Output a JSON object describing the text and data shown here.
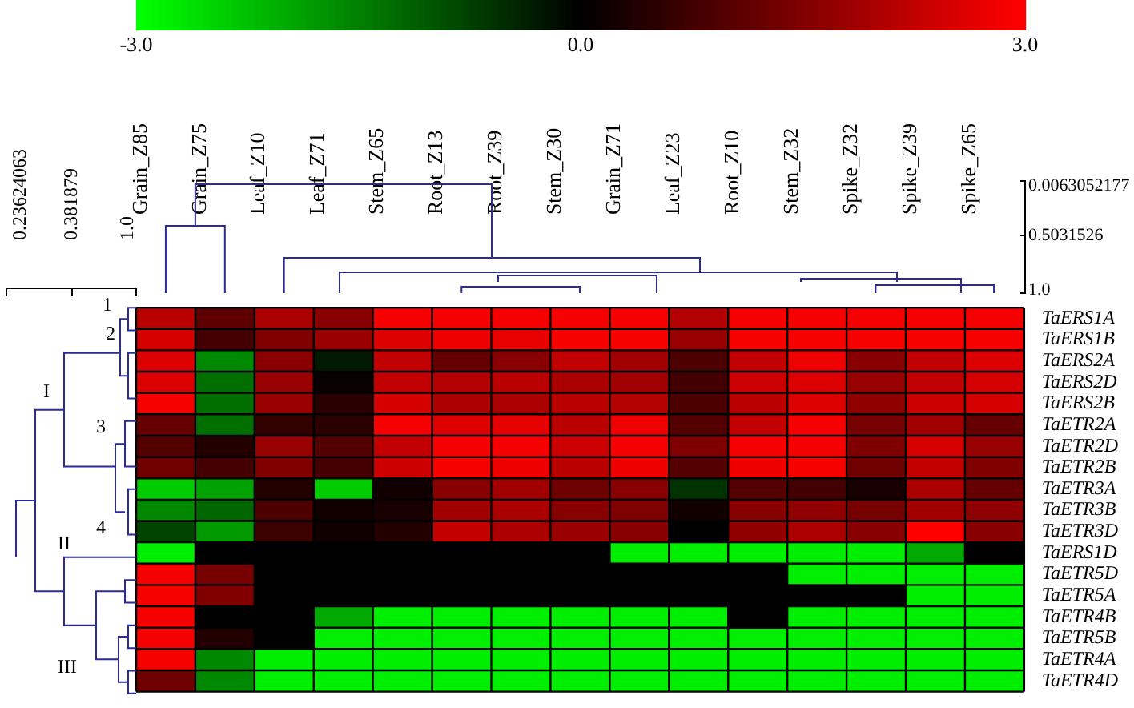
{
  "chart_data": {
    "type": "heatmap",
    "categories": [
      "Grain_Z85",
      "Grain_Z75",
      "Leaf_Z10",
      "Leaf_Z71",
      "Stem_Z65",
      "Root_Z13",
      "Root_Z39",
      "Stem_Z30",
      "Grain_Z71",
      "Leaf_Z23",
      "Root_Z10",
      "Stem_Z32",
      "Spike_Z32",
      "Spike_Z39",
      "Spike_Z65"
    ],
    "y_categories": [
      "TaERS1A",
      "TaERS1B",
      "TaERS2A",
      "TaERS2D",
      "TaERS2B",
      "TaETR2A",
      "TaETR2D",
      "TaETR2B",
      "TaETR3A",
      "TaETR3B",
      "TaETR3D",
      "TaERS1D",
      "TaETR5D",
      "TaETR5A",
      "TaETR4B",
      "TaETR5B",
      "TaETR4A",
      "TaETR4D"
    ],
    "cells": [
      [
        2.2,
        1.1,
        2.0,
        1.6,
        2.9,
        2.9,
        2.9,
        2.9,
        2.9,
        2.1,
        2.9,
        2.9,
        2.9,
        2.9,
        2.9
      ],
      [
        2.5,
        0.8,
        1.5,
        1.8,
        2.6,
        2.8,
        2.7,
        2.9,
        2.9,
        1.8,
        2.9,
        2.9,
        2.9,
        2.9,
        2.9
      ],
      [
        2.6,
        -1.6,
        1.6,
        -0.3,
        2.3,
        1.2,
        1.6,
        2.3,
        1.9,
        0.9,
        2.3,
        2.8,
        1.6,
        2.3,
        2.6
      ],
      [
        2.6,
        -1.3,
        1.8,
        0.1,
        2.3,
        2.1,
        2.2,
        2.0,
        1.9,
        0.8,
        2.4,
        2.6,
        1.8,
        2.3,
        2.5
      ],
      [
        2.9,
        -1.3,
        1.8,
        0.5,
        2.5,
        2.0,
        2.0,
        2.2,
        2.1,
        0.9,
        2.2,
        2.6,
        1.7,
        2.4,
        2.5
      ],
      [
        1.2,
        -1.3,
        0.6,
        0.5,
        2.9,
        2.6,
        2.7,
        2.2,
        2.8,
        1.0,
        2.3,
        2.9,
        1.4,
        1.9,
        1.2
      ],
      [
        1.0,
        0.4,
        1.8,
        1.0,
        2.3,
        2.9,
        2.9,
        2.4,
        2.9,
        1.5,
        2.9,
        2.9,
        1.5,
        2.5,
        1.8
      ],
      [
        1.3,
        0.8,
        1.5,
        0.8,
        2.4,
        2.9,
        2.8,
        2.2,
        2.8,
        1.0,
        2.8,
        2.9,
        1.3,
        2.3,
        1.5
      ],
      [
        -2.4,
        -1.9,
        0.4,
        -2.4,
        0.2,
        1.6,
        1.9,
        1.3,
        1.6,
        -0.6,
        1.0,
        0.8,
        0.3,
        2.0,
        1.2
      ],
      [
        -1.6,
        -1.2,
        0.9,
        0.2,
        0.3,
        1.9,
        2.0,
        1.6,
        1.5,
        0.2,
        1.6,
        1.7,
        1.4,
        1.9,
        1.7
      ],
      [
        -0.8,
        -1.8,
        0.7,
        0.2,
        0.4,
        2.3,
        2.0,
        1.8,
        1.6,
        0.0,
        1.7,
        2.0,
        1.6,
        3.0,
        1.6
      ],
      [
        -2.8,
        0,
        0,
        0,
        0,
        0,
        0,
        0,
        -2.8,
        -2.8,
        -2.8,
        -2.8,
        -2.8,
        -2.0,
        0
      ],
      [
        2.9,
        1.4,
        0,
        0,
        0,
        0,
        0,
        0,
        0,
        0,
        0,
        -2.8,
        -2.8,
        -2.8,
        -2.8
      ],
      [
        2.9,
        1.5,
        0,
        0,
        0,
        0,
        0,
        0,
        0,
        0,
        0,
        0,
        0,
        -2.8,
        -2.8
      ],
      [
        2.9,
        0,
        0,
        -2.0,
        -2.8,
        -2.8,
        -2.8,
        -2.8,
        -2.8,
        -2.8,
        0,
        -2.8,
        -2.8,
        -2.8,
        -2.8
      ],
      [
        2.9,
        0.4,
        0,
        -2.8,
        -2.8,
        -2.8,
        -2.8,
        -2.8,
        -2.8,
        -2.8,
        -2.8,
        -2.8,
        -2.8,
        -2.8,
        -2.8
      ],
      [
        2.9,
        -1.6,
        -2.8,
        -2.8,
        -2.8,
        -2.8,
        -2.8,
        -2.8,
        -2.8,
        -2.8,
        -2.8,
        -2.8,
        -2.8,
        -2.8,
        -2.8
      ],
      [
        1.3,
        -1.6,
        -2.8,
        -2.8,
        -2.8,
        -2.8,
        -2.8,
        -2.8,
        -2.8,
        -2.8,
        -2.8,
        -2.8,
        -2.8,
        -2.8,
        -2.8
      ]
    ],
    "clim": [
      -3,
      3
    ],
    "grid": true,
    "cticks": [
      {
        "value": -3,
        "label": "-3.0"
      },
      {
        "value": 0,
        "label": "0.0"
      },
      {
        "value": 3,
        "label": "3.0"
      }
    ],
    "annotations": [
      "0.23624063",
      "0.381879",
      "1.0",
      "0.0063052177",
      "0.5031526",
      "1.0",
      "1",
      "2",
      "3",
      "4",
      "I",
      "II",
      "III"
    ]
  }
}
